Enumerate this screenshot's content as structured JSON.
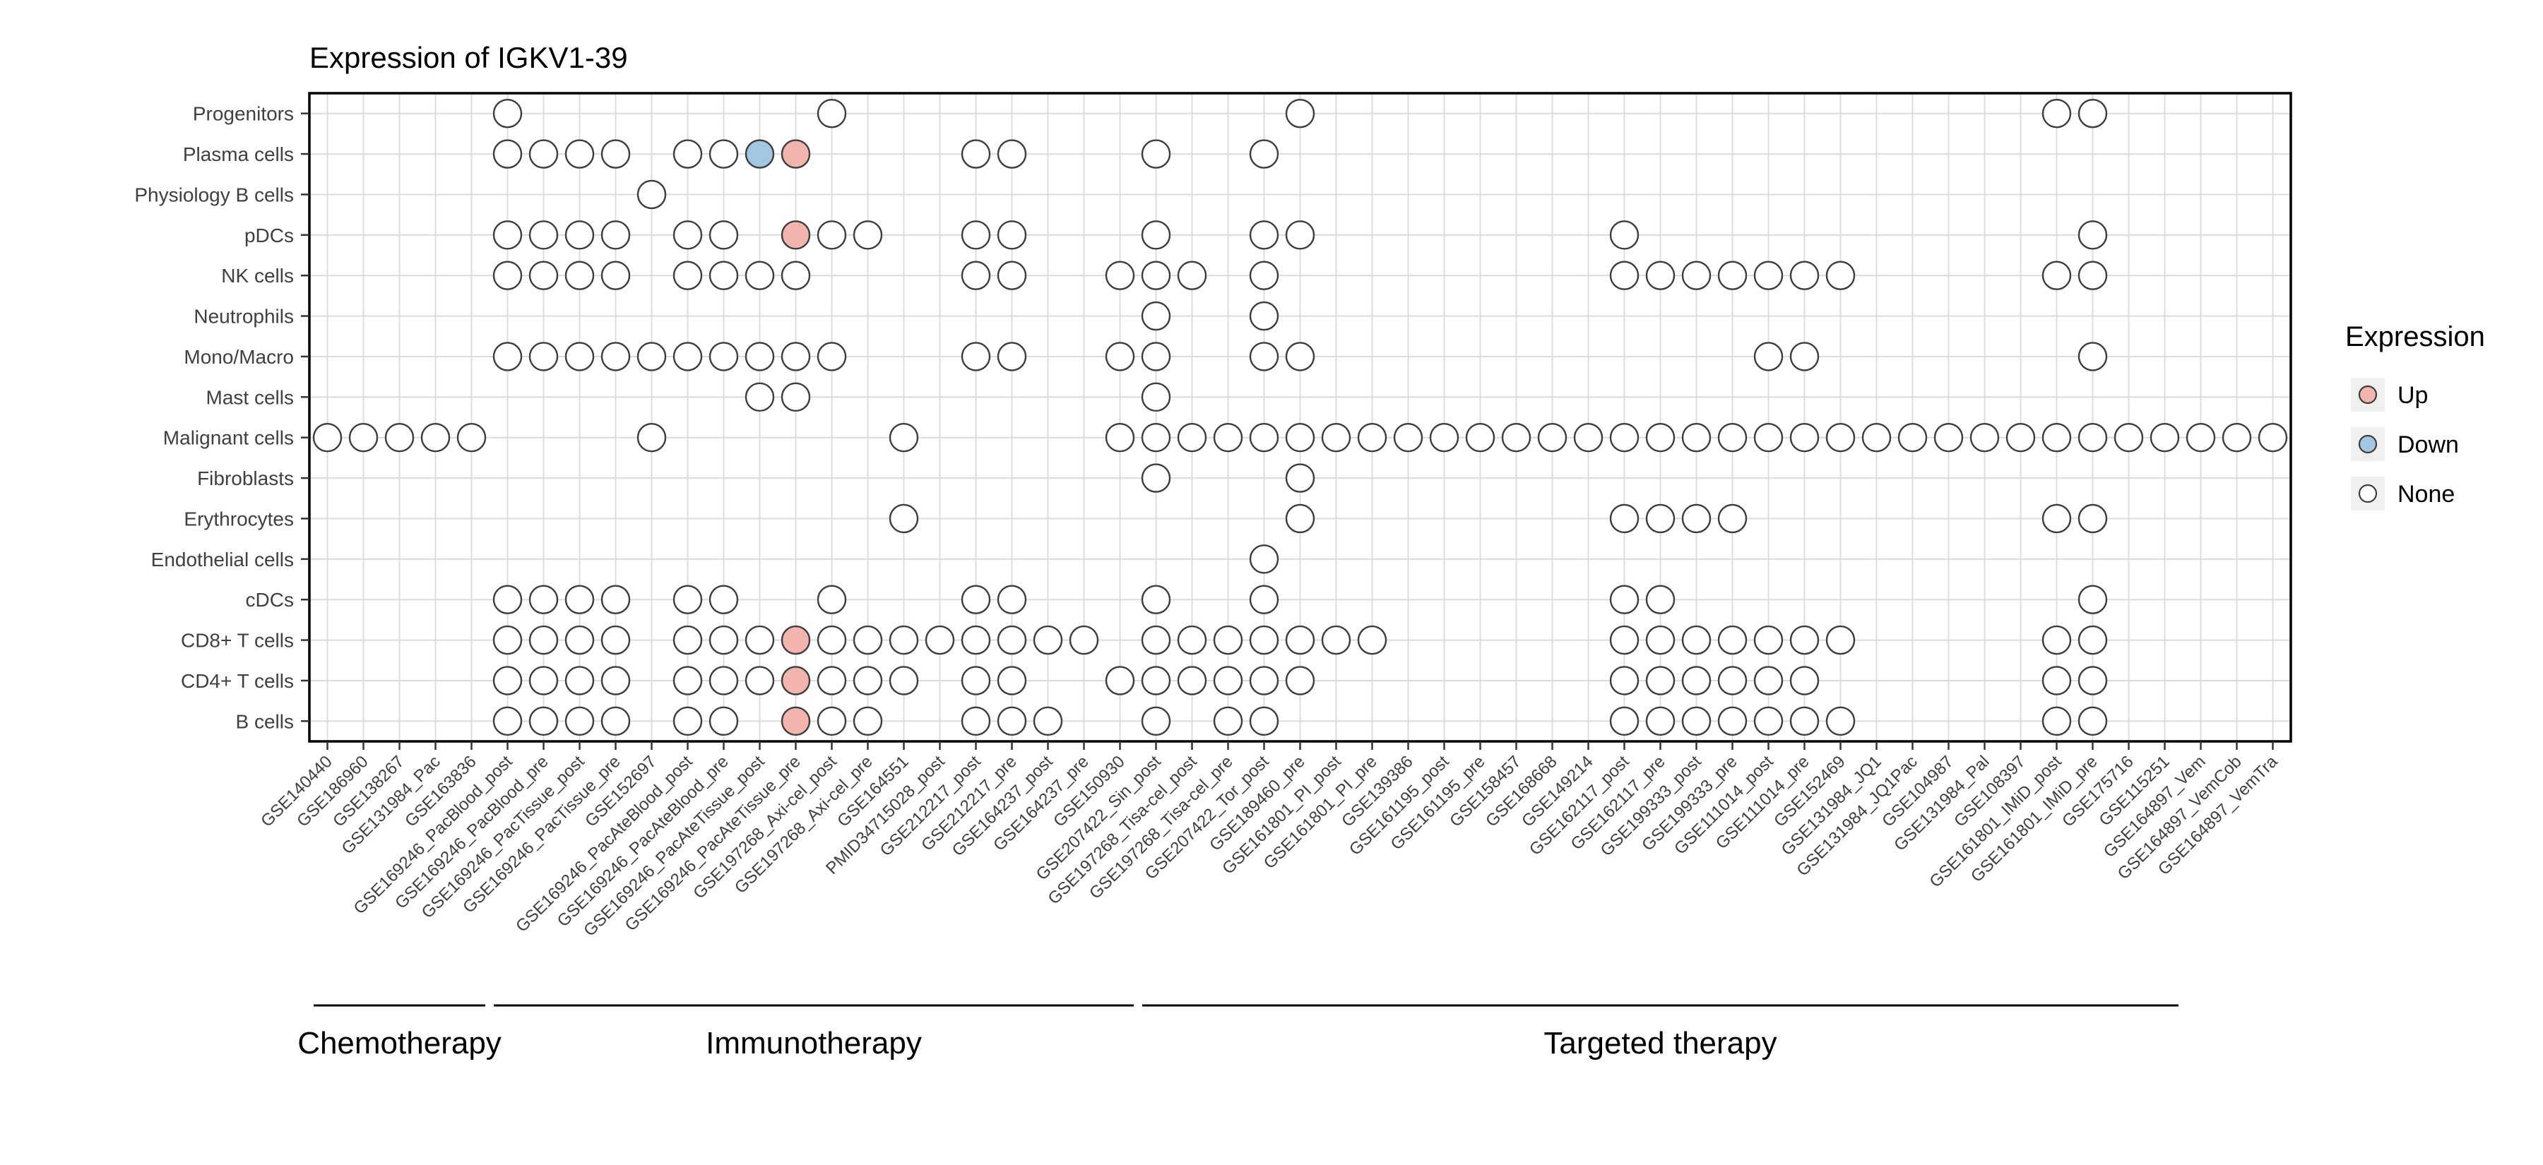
{
  "title": "Expression of IGKV1-39",
  "legend": {
    "title": "Expression",
    "items": [
      {
        "label": "Up",
        "status": "up",
        "color": "#F2B5AD"
      },
      {
        "label": "Down",
        "status": "down",
        "color": "#A3C7E0"
      },
      {
        "label": "None",
        "status": "none",
        "color": "#FFFFFF"
      }
    ]
  },
  "chart_data": {
    "type": "dot-matrix",
    "title": "Expression of IGKV1-39",
    "grid": true,
    "legend_position": "right",
    "status_colors": {
      "up": "#F2B5AD",
      "down": "#A3C7E0",
      "none": "#FFFFFF"
    },
    "rows": [
      "Progenitors",
      "Plasma cells",
      "Physiology B cells",
      "pDCs",
      "NK cells",
      "Neutrophils",
      "Mono/Macro",
      "Mast cells",
      "Malignant cells",
      "Fibroblasts",
      "Erythrocytes",
      "Endothelial cells",
      "cDCs",
      "CD8+ T cells",
      "CD4+ T cells",
      "B cells"
    ],
    "columns": [
      "GSE140440",
      "GSE186960",
      "GSE138267",
      "GSE131984_Pac",
      "GSE163836",
      "GSE169246_PacBlood_post",
      "GSE169246_PacBlood_pre",
      "GSE169246_PacTissue_post",
      "GSE169246_PacTissue_pre",
      "GSE152697",
      "GSE169246_PacAteBlood_post",
      "GSE169246_PacAteBlood_pre",
      "GSE169246_PacAteTissue_post",
      "GSE169246_PacAteTissue_pre",
      "GSE197268_Axi-cel_post",
      "GSE197268_Axi-cel_pre",
      "GSE164551",
      "PMID34715028_post",
      "GSE212217_post",
      "GSE212217_pre",
      "GSE164237_post",
      "GSE164237_pre",
      "GSE150930",
      "GSE207422_Sin_post",
      "GSE197268_Tisa-cel_post",
      "GSE197268_Tisa-cel_pre",
      "GSE207422_Tor_post",
      "GSE189460_pre",
      "GSE161801_PI_post",
      "GSE161801_PI_pre",
      "GSE139386",
      "GSE161195_post",
      "GSE161195_pre",
      "GSE158457",
      "GSE168668",
      "GSE149214",
      "GSE162117_post",
      "GSE162117_pre",
      "GSE199333_post",
      "GSE199333_pre",
      "GSE111014_post",
      "GSE111014_pre",
      "GSE152469",
      "GSE131984_JQ1",
      "GSE131984_JQ1Pac",
      "GSE104987",
      "GSE131984_Pal",
      "GSE108397",
      "GSE161801_IMiD_post",
      "GSE161801_IMiD_pre",
      "GSE175716",
      "GSE115251",
      "GSE164897_Vem",
      "GSE164897_VemCob",
      "GSE164897_VemTra"
    ],
    "groups": [
      {
        "label": "Chemotherapy",
        "col_start": 1,
        "col_end": 5
      },
      {
        "label": "Immunotherapy",
        "col_start": 6,
        "col_end": 23
      },
      {
        "label": "Targeted therapy",
        "col_start": 24,
        "col_end": 52
      }
    ],
    "dots": {
      "Progenitors": {
        "none": [
          6,
          15,
          28,
          49,
          50
        ]
      },
      "Plasma cells": {
        "none": [
          6,
          7,
          8,
          9,
          11,
          12,
          19,
          20,
          24,
          27
        ],
        "down": [
          13
        ],
        "up": [
          14
        ]
      },
      "Physiology B cells": {
        "none": [
          10
        ]
      },
      "pDCs": {
        "none": [
          6,
          7,
          8,
          9,
          11,
          12,
          15,
          16,
          19,
          20,
          24,
          27,
          28,
          37,
          50
        ],
        "up": [
          14
        ]
      },
      "NK cells": {
        "none": [
          6,
          7,
          8,
          9,
          11,
          12,
          13,
          14,
          19,
          20,
          23,
          24,
          25,
          27,
          37,
          38,
          39,
          40,
          41,
          42,
          43,
          49,
          50
        ]
      },
      "Neutrophils": {
        "none": [
          24,
          27
        ]
      },
      "Mono/Macro": {
        "none": [
          6,
          7,
          8,
          9,
          10,
          11,
          12,
          13,
          14,
          15,
          19,
          20,
          23,
          24,
          27,
          28,
          41,
          42,
          50
        ]
      },
      "Mast cells": {
        "none": [
          13,
          14,
          24
        ]
      },
      "Malignant cells": {
        "none": [
          1,
          2,
          3,
          4,
          5,
          10,
          17,
          23,
          24,
          25,
          26,
          27,
          28,
          29,
          30,
          31,
          32,
          33,
          34,
          35,
          36,
          37,
          38,
          39,
          40,
          41,
          42,
          43,
          44,
          45,
          46,
          47,
          48,
          49,
          50,
          51,
          52,
          53,
          54,
          55
        ]
      },
      "Fibroblasts": {
        "none": [
          24,
          28
        ]
      },
      "Erythrocytes": {
        "none": [
          17,
          28,
          37,
          38,
          39,
          40,
          49,
          50
        ]
      },
      "Endothelial cells": {
        "none": [
          27
        ]
      },
      "cDCs": {
        "none": [
          6,
          7,
          8,
          9,
          11,
          12,
          15,
          19,
          20,
          24,
          27,
          37,
          38,
          50
        ]
      },
      "CD8+ T cells": {
        "none": [
          6,
          7,
          8,
          9,
          11,
          12,
          13,
          15,
          16,
          17,
          18,
          19,
          20,
          21,
          22,
          24,
          25,
          26,
          27,
          28,
          29,
          30,
          37,
          38,
          39,
          40,
          41,
          42,
          43,
          49,
          50
        ],
        "up": [
          14
        ]
      },
      "CD4+ T cells": {
        "none": [
          6,
          7,
          8,
          9,
          11,
          12,
          13,
          15,
          16,
          17,
          19,
          20,
          23,
          24,
          25,
          26,
          27,
          28,
          37,
          38,
          39,
          40,
          41,
          42,
          49,
          50
        ],
        "up": [
          14
        ]
      },
      "B cells": {
        "none": [
          6,
          7,
          8,
          9,
          11,
          12,
          15,
          16,
          19,
          20,
          21,
          24,
          26,
          27,
          37,
          38,
          39,
          40,
          41,
          42,
          43,
          49,
          50
        ],
        "up": [
          14
        ]
      }
    }
  }
}
